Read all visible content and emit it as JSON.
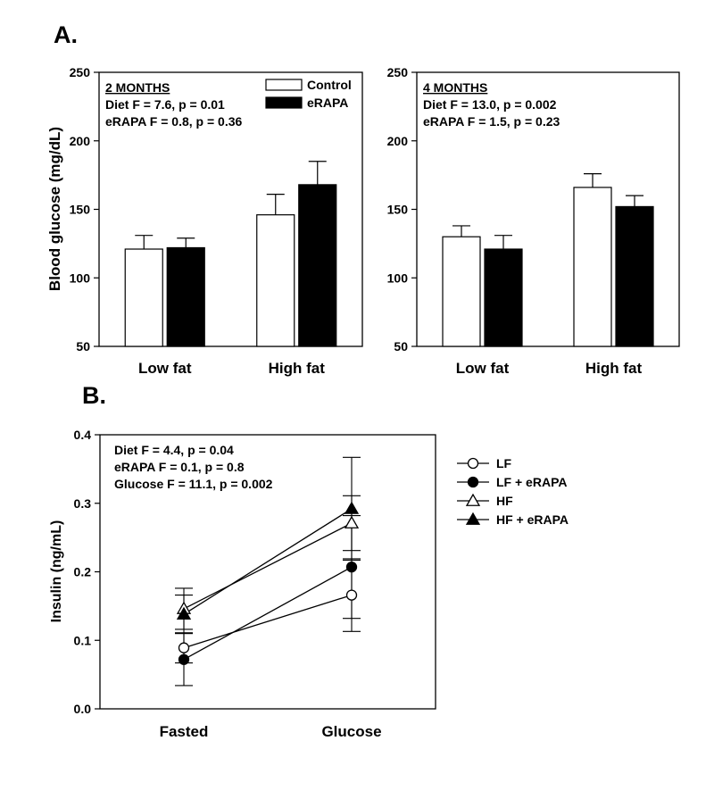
{
  "panel_labels": {
    "a": "A.",
    "b": "B."
  },
  "chart_data": [
    {
      "type": "bar",
      "panel": "A-left",
      "title": "2 MONTHS",
      "annotations": [
        "Diet F = 7.6, p = 0.01",
        "eRAPA F = 0.8, p = 0.36"
      ],
      "ylabel": "Blood glucose (mg/dL)",
      "xlabel": "",
      "ylim": [
        50,
        250
      ],
      "yticks": [
        50,
        100,
        150,
        200,
        250
      ],
      "categories": [
        "Low fat",
        "High fat"
      ],
      "legend": [
        "Control",
        "eRAPA"
      ],
      "series": [
        {
          "name": "Control",
          "color": "#ffffff",
          "values": [
            121,
            146
          ],
          "errors": [
            10,
            15
          ]
        },
        {
          "name": "eRAPA",
          "color": "#000000",
          "values": [
            122,
            168
          ],
          "errors": [
            7,
            17
          ]
        }
      ]
    },
    {
      "type": "bar",
      "panel": "A-right",
      "title": "4 MONTHS",
      "annotations": [
        "Diet F = 13.0, p = 0.002",
        "eRAPA F = 1.5, p = 0.23"
      ],
      "ylabel": "",
      "xlabel": "",
      "ylim": [
        50,
        250
      ],
      "yticks": [
        50,
        100,
        150,
        200,
        250
      ],
      "categories": [
        "Low fat",
        "High fat"
      ],
      "series": [
        {
          "name": "Control",
          "color": "#ffffff",
          "values": [
            130,
            166
          ],
          "errors": [
            8,
            10
          ]
        },
        {
          "name": "eRAPA",
          "color": "#000000",
          "values": [
            121,
            152
          ],
          "errors": [
            10,
            8
          ]
        }
      ]
    },
    {
      "type": "line",
      "panel": "B",
      "ylabel": "Insulin (ng/mL)",
      "xlabel": "",
      "ylim": [
        0.0,
        0.4
      ],
      "yticks": [
        "0.0",
        "0.1",
        "0.2",
        "0.3",
        "0.4"
      ],
      "categories": [
        "Fasted",
        "Glucose"
      ],
      "annotations": [
        "Diet F = 4.4, p = 0.04",
        "eRAPA F = 0.1, p = 0.8",
        "Glucose F = 11.1, p = 0.002"
      ],
      "series": [
        {
          "name": "LF",
          "marker": "circle-open",
          "values": [
            0.089,
            0.166
          ],
          "errors": [
            0.022,
            0.053
          ]
        },
        {
          "name": "LF + eRAPA",
          "marker": "circle-filled",
          "values": [
            0.072,
            0.207
          ],
          "errors": [
            0.038,
            0.075
          ]
        },
        {
          "name": "HF",
          "marker": "triangle-open",
          "values": [
            0.146,
            0.271
          ],
          "errors": [
            0.03,
            0.04
          ]
        },
        {
          "name": "HF + eRAPA",
          "marker": "triangle-filled",
          "values": [
            0.138,
            0.292
          ],
          "errors": [
            0.028,
            0.075
          ]
        }
      ]
    }
  ]
}
